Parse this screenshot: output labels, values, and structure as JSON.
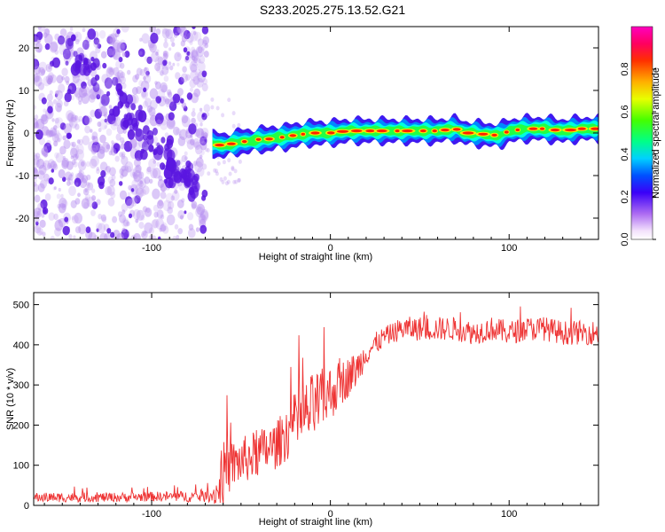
{
  "figure": {
    "title": "S233.2025.275.13.52.G21"
  },
  "colors": {
    "background": "#ffffff",
    "axis": "#000000",
    "snr_line": "#ee3333",
    "scatter_noise": "#b58cf0",
    "scatter_noise_dark": "#5a16e0",
    "colormap": [
      "#ffffff",
      "#e8d4fc",
      "#cda8f5",
      "#9a66ee",
      "#5a16e0",
      "#2000ff",
      "#0070ff",
      "#00ffff",
      "#00ff66",
      "#66ff00",
      "#ffff00",
      "#ff9900",
      "#ff2200",
      "#ff00aa"
    ]
  },
  "chart_data": [
    {
      "type": "heatmap",
      "title": "S233.2025.275.13.52.G21",
      "xlabel": "Height of straight line (km)",
      "ylabel": "Frequency (Hz)",
      "xlim": [
        -166,
        150
      ],
      "ylim": [
        -25,
        25
      ],
      "xticks": [
        -100,
        0,
        100
      ],
      "yticks": [
        -20,
        -10,
        0,
        10,
        20
      ],
      "grid": false,
      "noise_region": {
        "x_from": -166,
        "x_to": -69,
        "diagonal_feature": {
          "from": [
            -145,
            20
          ],
          "to": [
            -75,
            -14
          ]
        }
      },
      "signal_track": [
        [
          -66,
          -2.5
        ],
        [
          -60,
          -3
        ],
        [
          -55,
          -2.5
        ],
        [
          -50,
          -2
        ],
        [
          -45,
          -2
        ],
        [
          -40,
          -1.5
        ],
        [
          -35,
          -1.5
        ],
        [
          -30,
          -1
        ],
        [
          -25,
          -1
        ],
        [
          -20,
          -0.5
        ],
        [
          -10,
          0
        ],
        [
          0,
          0
        ],
        [
          10,
          0.5
        ],
        [
          20,
          0.5
        ],
        [
          30,
          0.5
        ],
        [
          40,
          0.5
        ],
        [
          50,
          0.5
        ],
        [
          60,
          0.5
        ],
        [
          70,
          1
        ],
        [
          75,
          0
        ],
        [
          80,
          0
        ],
        [
          90,
          -0.5
        ],
        [
          95,
          -0.5
        ],
        [
          100,
          0.5
        ],
        [
          110,
          1
        ],
        [
          120,
          1
        ],
        [
          130,
          0.5
        ],
        [
          140,
          1
        ],
        [
          150,
          1
        ]
      ],
      "colorbar": {
        "label": "Normalized spectral amplitude",
        "range": [
          0.0,
          1.0
        ],
        "ticks": [
          0.0,
          0.2,
          0.4,
          0.6,
          0.8
        ],
        "tick_labels": [
          "0.0",
          "0.2",
          "0.4",
          "0.6",
          "0.8"
        ]
      }
    },
    {
      "type": "line",
      "xlabel": "Height of straight line (km)",
      "ylabel": "SNR (10 * v/v)",
      "xlim": [
        -166,
        150
      ],
      "ylim": [
        0,
        530
      ],
      "xticks": [
        -100,
        0,
        100
      ],
      "yticks": [
        0,
        100,
        200,
        300,
        400,
        500
      ],
      "grid": false,
      "series": [
        {
          "x": [
            -166,
            -140,
            -120,
            -100,
            -80,
            -68,
            -63,
            -60,
            -55,
            -50,
            -45,
            -40,
            -35,
            -30,
            -25,
            -20,
            -15,
            -10,
            -5,
            0,
            5,
            10,
            15,
            20,
            25,
            30,
            35,
            40,
            50,
            60,
            70,
            80,
            90,
            100,
            110,
            120,
            130,
            140,
            150
          ],
          "y": [
            20,
            20,
            20,
            22,
            22,
            22,
            35,
            80,
            100,
            110,
            120,
            130,
            140,
            150,
            180,
            200,
            220,
            240,
            260,
            280,
            300,
            320,
            340,
            380,
            400,
            420,
            430,
            440,
            440,
            440,
            440,
            430,
            440,
            430,
            440,
            440,
            430,
            430,
            430
          ],
          "noise_amplitude": [
            12,
            12,
            12,
            12,
            14,
            14,
            40,
            80,
            60,
            60,
            60,
            60,
            60,
            60,
            70,
            80,
            80,
            90,
            80,
            70,
            60,
            50,
            45,
            30,
            30,
            25,
            25,
            30,
            30,
            30,
            30,
            30,
            30,
            30,
            30,
            30,
            30,
            30,
            30
          ]
        }
      ]
    }
  ]
}
